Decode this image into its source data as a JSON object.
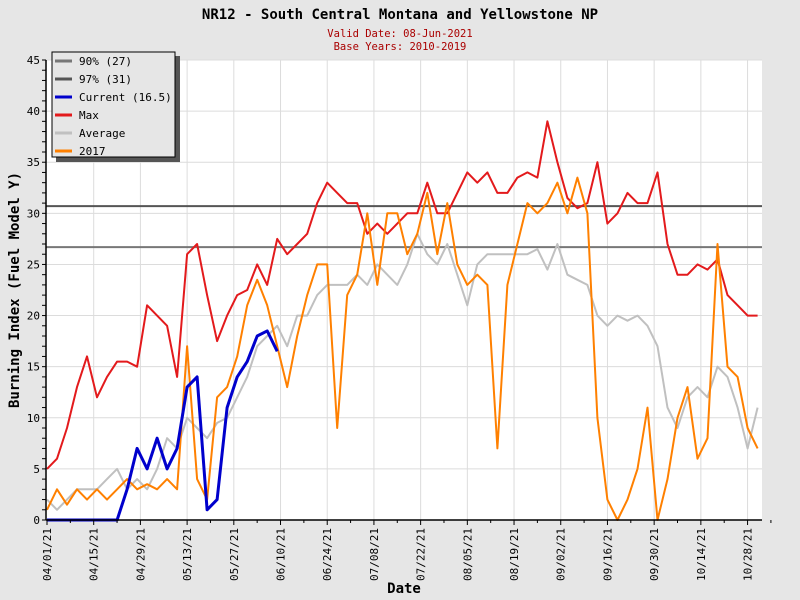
{
  "chart_data": {
    "type": "line",
    "title": "NR12 - South Central Montana and Yellowstone NP",
    "subtitle_lines": [
      "Valid Date: 08-Jun-2021",
      "Base Years: 2010-2019"
    ],
    "xlabel": "Date",
    "ylabel": "Burning Index (Fuel Model Y)",
    "ylim": [
      0,
      45
    ],
    "yticks": [
      0,
      5,
      10,
      15,
      20,
      25,
      30,
      35,
      40,
      45
    ],
    "x_unit": "days since 04/01/21",
    "xlim": [
      0,
      214
    ],
    "xticks": [
      {
        "day": 0,
        "label": "04/01/21"
      },
      {
        "day": 14,
        "label": "04/15/21"
      },
      {
        "day": 28,
        "label": "04/29/21"
      },
      {
        "day": 42,
        "label": "05/13/21"
      },
      {
        "day": 56,
        "label": "05/27/21"
      },
      {
        "day": 70,
        "label": "06/10/21"
      },
      {
        "day": 84,
        "label": "06/24/21"
      },
      {
        "day": 98,
        "label": "07/08/21"
      },
      {
        "day": 112,
        "label": "07/22/21"
      },
      {
        "day": 126,
        "label": "08/05/21"
      },
      {
        "day": 140,
        "label": "08/19/21"
      },
      {
        "day": 154,
        "label": "09/02/21"
      },
      {
        "day": 168,
        "label": "09/16/21"
      },
      {
        "day": 182,
        "label": "09/30/21"
      },
      {
        "day": 196,
        "label": "10/14/21"
      },
      {
        "day": 210,
        "label": "10/28/21"
      }
    ],
    "grid": true,
    "legend_position": "top-left",
    "day_step": 3,
    "thresholds": [
      {
        "name": "90% (27)",
        "value": 26.7,
        "color": "#777777"
      },
      {
        "name": "97% (31)",
        "value": 30.7,
        "color": "#555555"
      }
    ],
    "series": [
      {
        "name": "Max",
        "color": "#e31a1c",
        "width": 2,
        "values": [
          5,
          6,
          9,
          13,
          16,
          12,
          14,
          15.5,
          15.5,
          15,
          21,
          20,
          19,
          14,
          26,
          27,
          22,
          17.5,
          20,
          22,
          22.5,
          25,
          23,
          27.5,
          26,
          27,
          28,
          31,
          33,
          32,
          31,
          31,
          28,
          29,
          28,
          29,
          30,
          30,
          33,
          30,
          30,
          32,
          34,
          33,
          34,
          32,
          32,
          33.5,
          34,
          33.5,
          39,
          35,
          31.5,
          30.5,
          31,
          35,
          29,
          30,
          32,
          31,
          31,
          34,
          27,
          24,
          24,
          25,
          24.5,
          25.5,
          22,
          21,
          20,
          20
        ]
      },
      {
        "name": "Average",
        "color": "#c0c0c0",
        "width": 2,
        "values": [
          2,
          1,
          2,
          3,
          3,
          3,
          4,
          5,
          3,
          4,
          3,
          5,
          8,
          7,
          10,
          9,
          8,
          9.5,
          10,
          12,
          14,
          17,
          18,
          19,
          17,
          20,
          20,
          22,
          23,
          23,
          23,
          24,
          23,
          25,
          24,
          23,
          25,
          28,
          26,
          25,
          27,
          24,
          21,
          25,
          26,
          26,
          26,
          26,
          26,
          26.5,
          24.5,
          27,
          24,
          23.5,
          23,
          20,
          19,
          20,
          19.5,
          20,
          19,
          17,
          11,
          9,
          12,
          13,
          12,
          15,
          14,
          11,
          7,
          11
        ]
      },
      {
        "name": "2017",
        "color": "#ff8000",
        "width": 2,
        "values": [
          1,
          3,
          1.5,
          3,
          2,
          3,
          2,
          3,
          4,
          3,
          3.5,
          3,
          4,
          3,
          17,
          4,
          2,
          12,
          13,
          16,
          21,
          23.5,
          21,
          17,
          13,
          18,
          22,
          25,
          25,
          9,
          22,
          24,
          30,
          23,
          30,
          30,
          26,
          28,
          32,
          26,
          31,
          25,
          23,
          24,
          23,
          7,
          23,
          27,
          31,
          30,
          31,
          33,
          30,
          33.5,
          30,
          10,
          2,
          0,
          2,
          5,
          11,
          0,
          4,
          10,
          13,
          6,
          8,
          27,
          15,
          14,
          9,
          7
        ]
      },
      {
        "name": "Current (16.5)",
        "color": "#0000cc",
        "width": 3,
        "values": [
          0,
          0,
          0,
          0,
          0,
          0,
          0,
          0,
          3,
          7,
          5,
          8,
          5,
          7,
          13,
          14,
          1,
          2,
          11,
          14,
          15.5,
          18,
          18.5,
          16.5
        ]
      }
    ],
    "legend": [
      {
        "label": "90% (27)",
        "color": "#777777"
      },
      {
        "label": "97% (31)",
        "color": "#555555"
      },
      {
        "label": "Current (16.5)",
        "color": "#0000cc"
      },
      {
        "label": "Max",
        "color": "#e31a1c"
      },
      {
        "label": "Average",
        "color": "#c0c0c0"
      },
      {
        "label": "2017",
        "color": "#ff8000"
      }
    ]
  }
}
